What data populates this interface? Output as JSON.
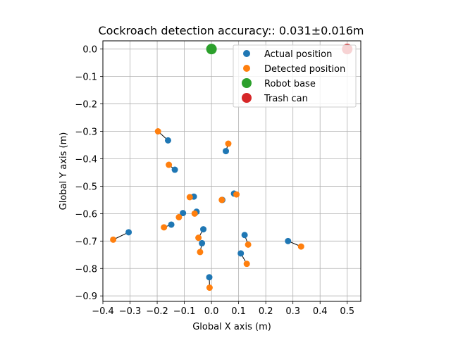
{
  "chart_data": {
    "type": "scatter",
    "title": "Cockroach detection accuracy:: 0.031±0.016m",
    "xlabel": "Global X axis (m)",
    "ylabel": "Global Y axis (m)",
    "xlim": [
      -0.4,
      0.55
    ],
    "ylim": [
      -0.92,
      0.03
    ],
    "xticks": [
      -0.4,
      -0.3,
      -0.2,
      -0.1,
      0.0,
      0.1,
      0.2,
      0.3,
      0.4,
      0.5
    ],
    "xtick_labels": [
      "−0.4",
      "−0.3",
      "−0.2",
      "−0.1",
      "0.0",
      "0.1",
      "0.2",
      "0.3",
      "0.4",
      "0.5"
    ],
    "yticks": [
      0.0,
      -0.1,
      -0.2,
      -0.3,
      -0.4,
      -0.5,
      -0.6,
      -0.7,
      -0.8,
      -0.9
    ],
    "ytick_labels": [
      "0.0",
      "−0.1",
      "−0.2",
      "−0.3",
      "−0.4",
      "−0.5",
      "−0.6",
      "−0.7",
      "−0.8",
      "−0.9"
    ],
    "grid": true,
    "legend_position": "top-right",
    "series": [
      {
        "name": "Actual position",
        "color": "#1f77b4",
        "points": [
          [
            -0.16,
            -0.333
          ],
          [
            -0.135,
            -0.44
          ],
          [
            -0.065,
            -0.538
          ],
          [
            -0.105,
            -0.598
          ],
          [
            -0.055,
            -0.593
          ],
          [
            -0.148,
            -0.64
          ],
          [
            -0.305,
            -0.668
          ],
          [
            -0.03,
            -0.657
          ],
          [
            -0.035,
            -0.708
          ],
          [
            -0.008,
            -0.832
          ],
          [
            0.053,
            -0.372
          ],
          [
            0.083,
            -0.527
          ],
          [
            0.04,
            -0.55
          ],
          [
            0.122,
            -0.678
          ],
          [
            0.108,
            -0.745
          ],
          [
            0.282,
            -0.7
          ]
        ]
      },
      {
        "name": "Detected position",
        "color": "#ff7f0e",
        "points": [
          [
            -0.197,
            -0.3
          ],
          [
            -0.157,
            -0.422
          ],
          [
            -0.08,
            -0.54
          ],
          [
            -0.12,
            -0.613
          ],
          [
            -0.062,
            -0.6
          ],
          [
            -0.175,
            -0.65
          ],
          [
            -0.362,
            -0.695
          ],
          [
            -0.048,
            -0.688
          ],
          [
            -0.042,
            -0.74
          ],
          [
            -0.007,
            -0.87
          ],
          [
            0.062,
            -0.345
          ],
          [
            0.092,
            -0.53
          ],
          [
            0.038,
            -0.55
          ],
          [
            0.135,
            -0.713
          ],
          [
            0.13,
            -0.783
          ],
          [
            0.33,
            -0.72
          ]
        ]
      }
    ],
    "markers": [
      {
        "name": "Robot base",
        "color": "#2ca02c",
        "x": 0.0,
        "y": 0.0
      },
      {
        "name": "Trash can",
        "color": "#d62728",
        "x": 0.5,
        "y": 0.0
      }
    ]
  }
}
